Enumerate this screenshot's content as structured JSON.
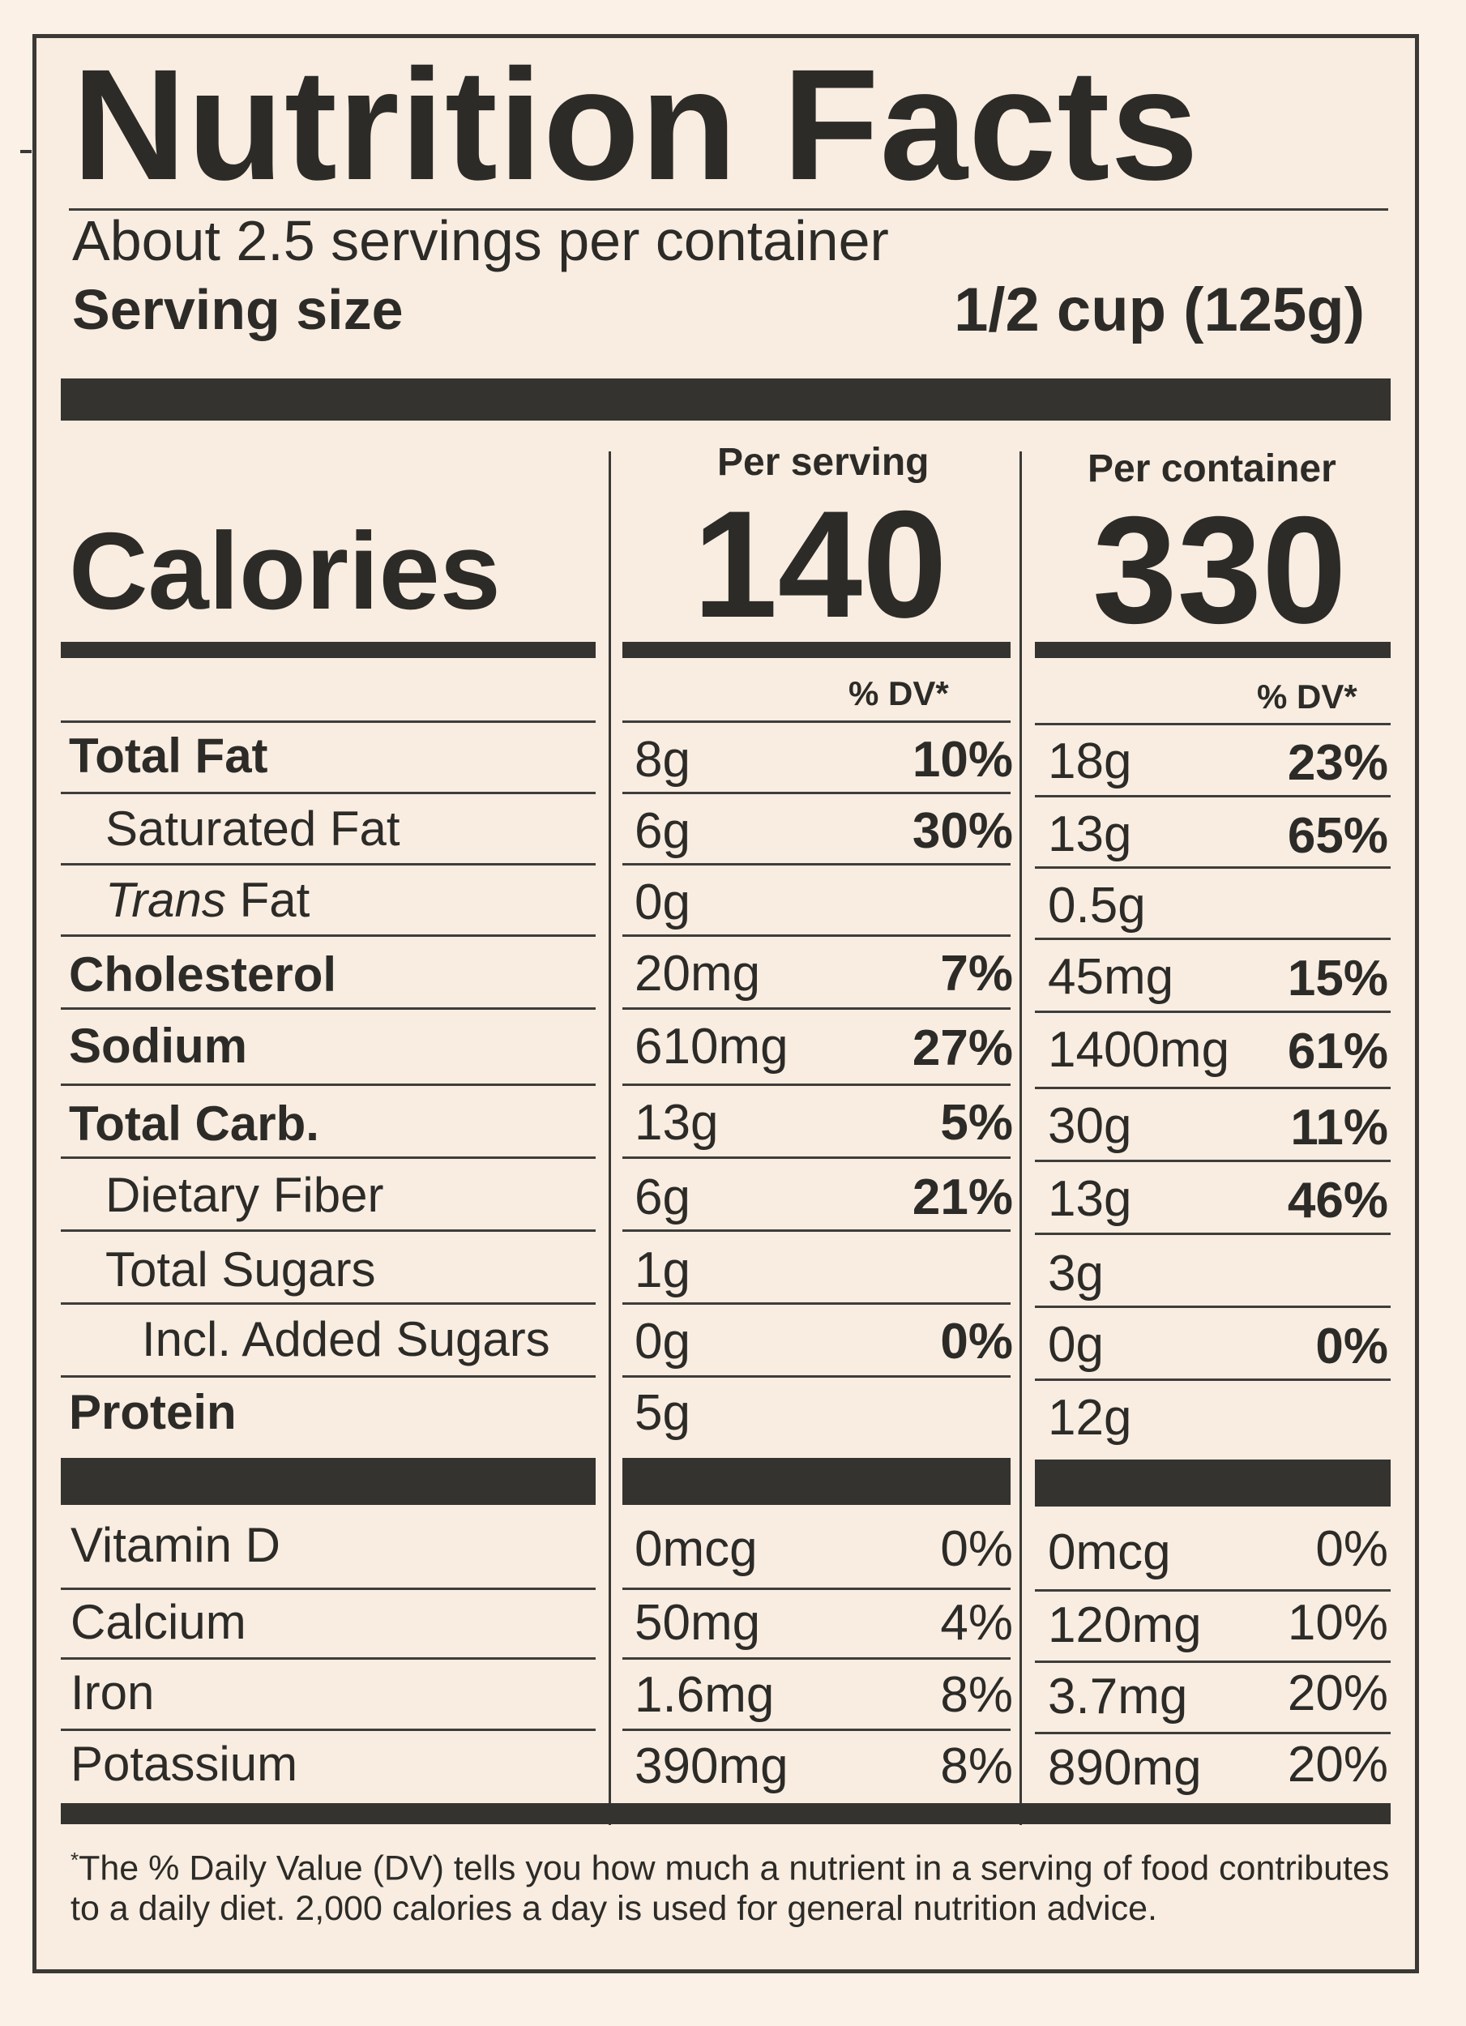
{
  "title": "Nutrition Facts",
  "servings_per_container": "About 2.5 servings per container",
  "serving_size_label": "Serving size",
  "serving_size_value": "1/2 cup (125g)",
  "column_headers": {
    "per_serving": "Per serving",
    "per_container": "Per container"
  },
  "calories": {
    "label": "Calories",
    "per_serving": "140",
    "per_container": "330"
  },
  "dv_header": "% DV*",
  "nutrients": [
    {
      "name": "Total Fat",
      "serving_amount": "8g",
      "serving_dv": "10%",
      "container_amount": "18g",
      "container_dv": "23%"
    },
    {
      "name": "Saturated Fat",
      "serving_amount": "6g",
      "serving_dv": "30%",
      "container_amount": "13g",
      "container_dv": "65%"
    },
    {
      "name_italic": "Trans",
      "name_rest": " Fat",
      "serving_amount": "0g",
      "serving_dv": "",
      "container_amount": "0.5g",
      "container_dv": ""
    },
    {
      "name": "Cholesterol",
      "serving_amount": "20mg",
      "serving_dv": "7%",
      "container_amount": "45mg",
      "container_dv": "15%"
    },
    {
      "name": "Sodium",
      "serving_amount": "610mg",
      "serving_dv": "27%",
      "container_amount": "1400mg",
      "container_dv": "61%"
    },
    {
      "name": "Total Carb.",
      "serving_amount": "13g",
      "serving_dv": "5%",
      "container_amount": "30g",
      "container_dv": "11%"
    },
    {
      "name": "Dietary Fiber",
      "serving_amount": "6g",
      "serving_dv": "21%",
      "container_amount": "13g",
      "container_dv": "46%"
    },
    {
      "name": "Total Sugars",
      "serving_amount": "1g",
      "serving_dv": "",
      "container_amount": "3g",
      "container_dv": ""
    },
    {
      "name": "Incl. Added Sugars",
      "serving_amount": "0g",
      "serving_dv": "0%",
      "container_amount": "0g",
      "container_dv": "0%"
    },
    {
      "name": "Protein",
      "serving_amount": "5g",
      "serving_dv": "",
      "container_amount": "12g",
      "container_dv": ""
    }
  ],
  "vitamins": [
    {
      "name": "Vitamin D",
      "serving_amount": "0mcg",
      "serving_dv": "0%",
      "container_amount": "0mcg",
      "container_dv": "0%"
    },
    {
      "name": "Calcium",
      "serving_amount": "50mg",
      "serving_dv": "4%",
      "container_amount": "120mg",
      "container_dv": "10%"
    },
    {
      "name": "Iron",
      "serving_amount": "1.6mg",
      "serving_dv": "8%",
      "container_amount": "3.7mg",
      "container_dv": "20%"
    },
    {
      "name": "Potassium",
      "serving_amount": "390mg",
      "serving_dv": "8%",
      "container_amount": "890mg",
      "container_dv": "20%"
    }
  ],
  "footnote_marker": "*",
  "footnote": "The % Daily Value (DV) tells you how much a nutrient in a serving of food contributes to a daily diet. 2,000 calories a day is used for general nutrition advice.",
  "colors": {
    "background": "#fbf1e6",
    "ink": "#2c2b28"
  }
}
